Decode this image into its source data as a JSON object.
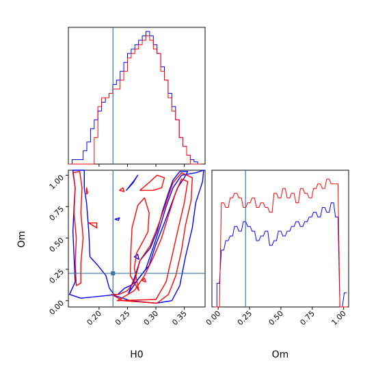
{
  "chart_data": [
    {
      "type": "histogram",
      "panel": "H0 marginal",
      "x": [
        0.146,
        0.1525,
        0.159,
        0.1655,
        0.172,
        0.1785,
        0.185,
        0.1915,
        0.198,
        0.2045,
        0.211,
        0.2175,
        0.224,
        0.2305,
        0.237,
        0.2435,
        0.25,
        0.2565,
        0.263,
        0.2695,
        0.276,
        0.2825,
        0.289,
        0.2955,
        0.302,
        0.3085,
        0.315,
        0.3215,
        0.328,
        0.3345,
        0.341,
        0.3475,
        0.354,
        0.3605,
        0.367,
        0.3735
      ],
      "series": [
        {
          "name": "",
          "color": "#0000ff",
          "values": [
            0,
            1,
            1,
            1,
            3,
            5,
            8,
            10,
            12,
            14,
            15,
            16,
            18,
            19,
            21,
            23,
            25,
            26,
            27,
            28,
            29,
            30,
            29,
            27,
            25,
            22,
            19,
            16,
            13,
            10,
            6,
            4,
            2,
            1,
            0.5,
            0
          ]
        },
        {
          "name": "",
          "color": "#ff0000",
          "values": [
            0,
            0,
            0,
            0,
            0,
            0,
            0,
            6,
            13,
            15,
            15,
            16,
            17,
            17,
            19,
            21,
            24,
            25,
            26,
            27,
            28,
            29,
            28,
            26,
            25,
            21,
            19,
            15,
            12,
            10,
            6,
            4,
            2,
            0,
            0,
            0
          ]
        }
      ],
      "truth": 0.2245,
      "xlim": [
        0.146,
        0.3865
      ]
    },
    {
      "type": "contour",
      "panel": "H0 vs Om",
      "xlabel": "H0",
      "ylabel": "Om",
      "xticks": [
        "0.20",
        "0.25",
        "0.30",
        "0.35"
      ],
      "yticks": [
        "0.00",
        "0.25",
        "0.50",
        "0.75",
        "1.00"
      ],
      "xlim": [
        0.146,
        0.3865
      ],
      "ylim": [
        -0.05,
        1.04
      ],
      "truth": {
        "H0": 0.2245,
        "Om": 0.218
      },
      "series": [
        {
          "name": "",
          "color": "#0000ff",
          "contours": [
            [
              [
                0.154,
                1.04
              ],
              [
                0.174,
                1.04
              ],
              [
                0.174,
                0.9
              ],
              [
                0.178,
                0.78
              ],
              [
                0.182,
                0.55
              ],
              [
                0.184,
                0.35
              ],
              [
                0.198,
                0.28
              ],
              [
                0.212,
                0.2
              ],
              [
                0.218,
                0.1
              ],
              [
                0.228,
                0.04
              ],
              [
                0.255,
                0.0
              ],
              [
                0.3,
                -0.02
              ],
              [
                0.328,
                0.0
              ],
              [
                0.342,
                0.12
              ],
              [
                0.352,
                0.35
              ],
              [
                0.364,
                0.58
              ],
              [
                0.37,
                0.78
              ],
              [
                0.382,
                0.95
              ],
              [
                0.384,
                1.04
              ],
              [
                0.37,
                1.02
              ],
              [
                0.345,
                1.0
              ],
              [
                0.33,
                0.9
              ],
              [
                0.318,
                0.75
              ],
              [
                0.308,
                0.6
              ],
              [
                0.295,
                0.42
              ],
              [
                0.282,
                0.25
              ],
              [
                0.265,
                0.15
              ],
              [
                0.255,
                0.12
              ],
              [
                0.245,
                0.1
              ],
              [
                0.233,
                0.05
              ],
              [
                0.168,
                0.02
              ],
              [
                0.148,
                0.05
              ],
              [
                0.158,
                0.15
              ],
              [
                0.156,
                0.35
              ],
              [
                0.154,
                0.55
              ],
              [
                0.156,
                0.75
              ],
              [
                0.158,
                0.9
              ],
              [
                0.154,
                1.04
              ]
            ],
            [
              [
                0.252,
                0.06
              ],
              [
                0.27,
                0.18
              ],
              [
                0.288,
                0.28
              ],
              [
                0.3,
                0.45
              ],
              [
                0.315,
                0.62
              ],
              [
                0.328,
                0.78
              ],
              [
                0.338,
                0.9
              ],
              [
                0.35,
                0.98
              ],
              [
                0.356,
                1.03
              ],
              [
                0.342,
                1.03
              ],
              [
                0.33,
                0.96
              ],
              [
                0.322,
                0.86
              ],
              [
                0.312,
                0.72
              ],
              [
                0.302,
                0.55
              ],
              [
                0.29,
                0.42
              ],
              [
                0.272,
                0.32
              ],
              [
                0.262,
                0.18
              ],
              [
                0.252,
                0.06
              ]
            ],
            [
              [
                0.248,
                0.88
              ],
              [
                0.262,
                0.96
              ],
              [
                0.268,
                1.0
              ],
              [
                0.26,
                0.94
              ],
              [
                0.248,
                0.88
              ]
            ],
            [
              [
                0.228,
                0.65
              ],
              [
                0.236,
                0.66
              ],
              [
                0.234,
                0.64
              ],
              [
                0.228,
                0.65
              ]
            ],
            [
              [
                0.262,
                0.35
              ],
              [
                0.268,
                0.37
              ],
              [
                0.27,
                0.33
              ],
              [
                0.262,
                0.35
              ]
            ]
          ]
        },
        {
          "name": "",
          "color": "#ff0000",
          "contours": [
            [
              [
                0.154,
                1.02
              ],
              [
                0.166,
                1.03
              ],
              [
                0.17,
                0.9
              ],
              [
                0.168,
                0.7
              ],
              [
                0.172,
                0.5
              ],
              [
                0.168,
                0.3
              ],
              [
                0.168,
                0.14
              ],
              [
                0.16,
                0.12
              ],
              [
                0.158,
                0.3
              ],
              [
                0.16,
                0.5
              ],
              [
                0.156,
                0.7
              ],
              [
                0.158,
                0.9
              ],
              [
                0.154,
                1.02
              ]
            ],
            [
              [
                0.178,
                0.85
              ],
              [
                0.178,
                0.9
              ],
              [
                0.18,
                0.86
              ],
              [
                0.178,
                0.85
              ]
            ],
            [
              [
                0.182,
                0.62
              ],
              [
                0.196,
                0.62
              ],
              [
                0.196,
                0.58
              ],
              [
                0.182,
                0.62
              ]
            ],
            [
              [
                0.222,
                0.05
              ],
              [
                0.242,
                0.0
              ],
              [
                0.302,
                -0.02
              ],
              [
                0.322,
                0.05
              ],
              [
                0.335,
                0.2
              ],
              [
                0.345,
                0.4
              ],
              [
                0.352,
                0.6
              ],
              [
                0.362,
                0.8
              ],
              [
                0.364,
                0.98
              ],
              [
                0.345,
                1.02
              ],
              [
                0.33,
                0.94
              ],
              [
                0.318,
                0.78
              ],
              [
                0.304,
                0.6
              ],
              [
                0.29,
                0.44
              ],
              [
                0.272,
                0.32
              ],
              [
                0.262,
                0.15
              ],
              [
                0.25,
                0.08
              ],
              [
                0.235,
                0.05
              ],
              [
                0.222,
                0.05
              ]
            ],
            [
              [
                0.232,
                0.0
              ],
              [
                0.3,
                0.01
              ],
              [
                0.318,
                0.15
              ],
              [
                0.328,
                0.35
              ],
              [
                0.338,
                0.55
              ],
              [
                0.35,
                0.78
              ],
              [
                0.356,
                0.95
              ],
              [
                0.345,
                0.97
              ],
              [
                0.334,
                0.85
              ],
              [
                0.322,
                0.68
              ],
              [
                0.31,
                0.5
              ],
              [
                0.296,
                0.35
              ],
              [
                0.28,
                0.2
              ],
              [
                0.262,
                0.08
              ],
              [
                0.232,
                0.0
              ]
            ],
            [
              [
                0.258,
                0.58
              ],
              [
                0.268,
                0.76
              ],
              [
                0.28,
                0.82
              ],
              [
                0.288,
                0.7
              ],
              [
                0.286,
                0.55
              ],
              [
                0.278,
                0.48
              ],
              [
                0.266,
                0.38
              ],
              [
                0.262,
                0.26
              ],
              [
                0.27,
                0.08
              ],
              [
                0.255,
                0.2
              ],
              [
                0.256,
                0.4
              ],
              [
                0.258,
                0.58
              ]
            ],
            [
              [
                0.272,
                0.88
              ],
              [
                0.29,
                0.95
              ],
              [
                0.302,
                1.0
              ],
              [
                0.315,
                0.98
              ],
              [
                0.31,
                0.9
              ],
              [
                0.295,
                0.88
              ],
              [
                0.272,
                0.88
              ]
            ],
            [
              [
                0.236,
                0.88
              ],
              [
                0.242,
                0.9
              ],
              [
                0.244,
                0.87
              ],
              [
                0.236,
                0.88
              ]
            ],
            [
              [
                0.276,
                0.16
              ],
              [
                0.28,
                0.18
              ],
              [
                0.282,
                0.15
              ],
              [
                0.276,
                0.16
              ]
            ]
          ]
        }
      ]
    },
    {
      "type": "histogram",
      "panel": "Om marginal",
      "xlabel": "Om",
      "xticks": [
        "0.00",
        "0.25",
        "0.50",
        "0.75",
        "1.00"
      ],
      "x": [
        -0.03,
        -0.01,
        0.025,
        0.06,
        0.095,
        0.13,
        0.165,
        0.2,
        0.235,
        0.27,
        0.305,
        0.34,
        0.375,
        0.41,
        0.445,
        0.48,
        0.515,
        0.55,
        0.585,
        0.62,
        0.655,
        0.69,
        0.725,
        0.76,
        0.795,
        0.83,
        0.865,
        0.9,
        0.935,
        0.97,
        1.005
      ],
      "series": [
        {
          "name": "",
          "color": "#0000ff",
          "values": [
            0,
            5,
            12,
            14,
            15,
            17,
            16,
            18,
            17,
            16,
            14,
            15,
            16,
            13,
            14,
            16,
            15,
            16,
            17,
            18,
            17,
            18,
            19,
            20,
            19,
            21,
            20,
            22,
            19,
            0,
            3
          ]
        },
        {
          "name": "",
          "color": "#ff0000",
          "values": [
            0,
            0,
            22,
            21,
            23,
            24,
            23,
            21,
            22,
            23,
            21,
            22,
            21,
            20,
            24,
            23,
            25,
            23,
            24,
            22,
            25,
            24,
            23,
            25,
            26,
            25,
            27,
            26,
            26,
            0,
            0
          ]
        }
      ],
      "truth": 0.218,
      "xlim": [
        -0.05,
        1.04
      ]
    }
  ]
}
